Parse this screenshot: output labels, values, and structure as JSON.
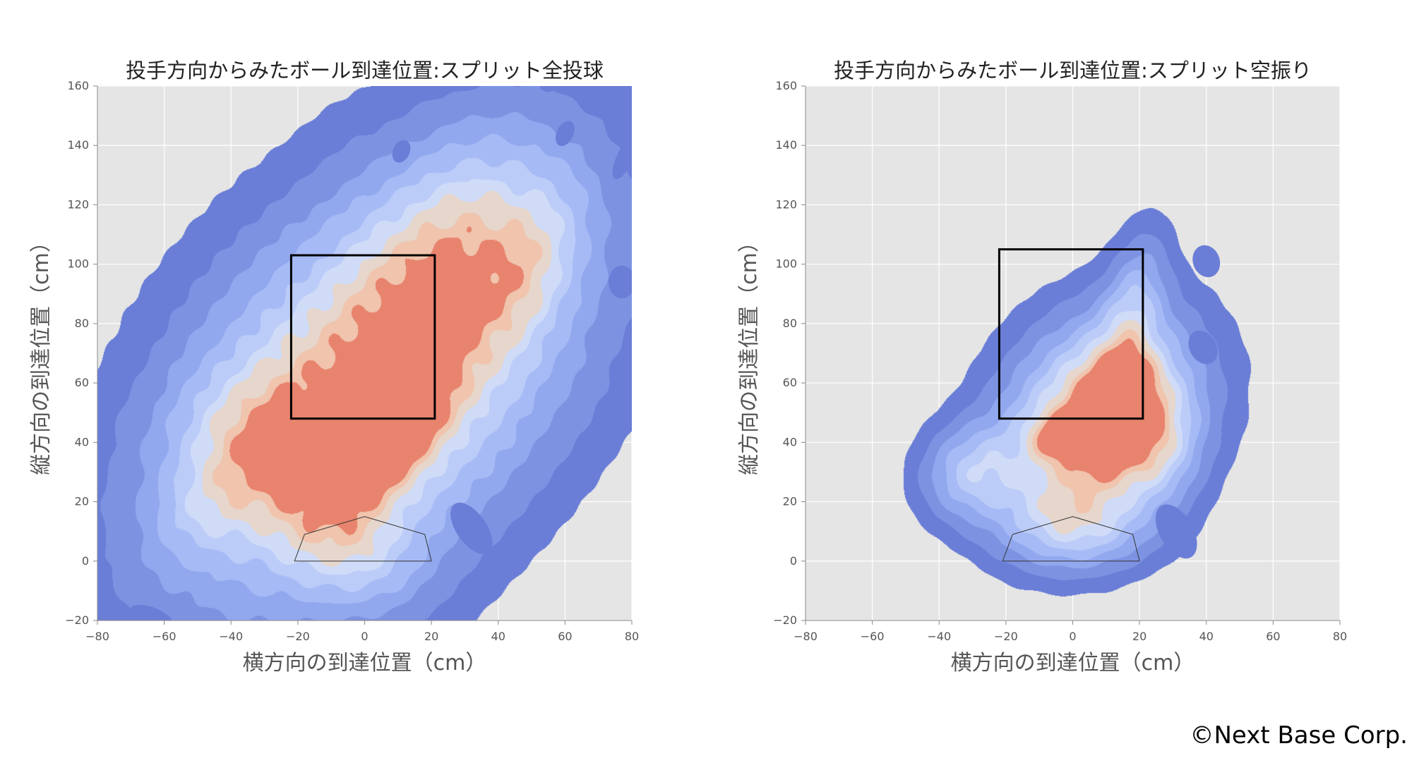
{
  "credit": "©Next Base Corp.",
  "colors": {
    "plot_bg": "#e5e5e5",
    "grid": "#ffffff",
    "tick_text": "#555555",
    "label_text": "#555555",
    "strike_zone": "#000000",
    "home_plate": "#333333",
    "kde_levels": [
      "#6a7ed7",
      "#7d93e2",
      "#92a8ee",
      "#a6bbf5",
      "#bcccf8",
      "#d0dcf7",
      "#e6d6cb",
      "#f0c4ad",
      "#e8836e"
    ]
  },
  "chart_data": [
    {
      "type": "heatmap",
      "title": "投手方向からみたボール到達位置:スプリット全投球",
      "xlabel": "横方向の到達位置（cm）",
      "ylabel": "縦方向の到達位置（cm）",
      "xlim": [
        -80,
        80
      ],
      "ylim": [
        -20,
        160
      ],
      "xticks": [
        -80,
        -60,
        -40,
        -20,
        0,
        20,
        40,
        60,
        80
      ],
      "yticks": [
        -20,
        0,
        20,
        40,
        60,
        80,
        100,
        120,
        140,
        160
      ],
      "xtick_labels": [
        "−80",
        "−60",
        "−40",
        "−20",
        "0",
        "20",
        "40",
        "60",
        "80"
      ],
      "ytick_labels": [
        "−20",
        "0",
        "20",
        "40",
        "60",
        "80",
        "100",
        "120",
        "140",
        "160"
      ],
      "grid": true,
      "strike_zone": {
        "x": [
          -22,
          21
        ],
        "y": [
          48,
          103
        ]
      },
      "home_plate": [
        [
          -21,
          0
        ],
        [
          -18,
          9
        ],
        [
          0,
          15
        ],
        [
          18,
          9
        ],
        [
          20,
          0
        ]
      ],
      "density_blobs": [
        {
          "cx": 2,
          "cy": 60,
          "sx": 32,
          "sy": 55,
          "rot": -35,
          "w": 1.0
        },
        {
          "cx": 5,
          "cy": 45,
          "sx": 9,
          "sy": 17,
          "rot": -30,
          "w": 0.85
        },
        {
          "cx": -30,
          "cy": 40,
          "sx": 16,
          "sy": 15,
          "rot": -40,
          "w": 0.35
        },
        {
          "cx": 28,
          "cy": 105,
          "sx": 16,
          "sy": 28,
          "rot": -25,
          "w": 0.35
        },
        {
          "cx": 50,
          "cy": 100,
          "sx": 9,
          "sy": 20,
          "rot": -20,
          "w": 0.25
        },
        {
          "cx": -5,
          "cy": 5,
          "sx": 16,
          "sy": 12,
          "rot": -40,
          "w": 0.3
        },
        {
          "cx": -48,
          "cy": 18,
          "sx": 9,
          "sy": 13,
          "rot": -35,
          "w": 0.18
        }
      ],
      "extra_islands": [
        {
          "cx": 11,
          "cy": 138,
          "rx": 2.5,
          "ry": 4,
          "rot": -25
        },
        {
          "cx": 60,
          "cy": 144,
          "rx": 2.5,
          "ry": 4.5,
          "rot": -25
        },
        {
          "cx": 78,
          "cy": 136,
          "rx": 2.5,
          "ry": 8,
          "rot": -25
        },
        {
          "cx": 77,
          "cy": 94,
          "rx": 4,
          "ry": 5.5,
          "rot": 0
        },
        {
          "cx": 32,
          "cy": 11,
          "rx": 4.5,
          "ry": 10,
          "rot": 35
        },
        {
          "cx": -64,
          "cy": -19,
          "rx": 7,
          "ry": 3.5,
          "rot": -20
        },
        {
          "cx": 55,
          "cy": 160,
          "rx": 2.5,
          "ry": 2,
          "rot": 0
        }
      ]
    },
    {
      "type": "heatmap",
      "title": "投手方向からみたボール到達位置:スプリット空振り",
      "xlabel": "横方向の到達位置（cm）",
      "ylabel": "縦方向の到達位置（cm）",
      "xlim": [
        -80,
        80
      ],
      "ylim": [
        -20,
        160
      ],
      "xticks": [
        -80,
        -60,
        -40,
        -20,
        0,
        20,
        40,
        60,
        80
      ],
      "yticks": [
        -20,
        0,
        20,
        40,
        60,
        80,
        100,
        120,
        140,
        160
      ],
      "xtick_labels": [
        "−80",
        "−60",
        "−40",
        "−20",
        "0",
        "20",
        "40",
        "60",
        "80"
      ],
      "ytick_labels": [
        "−20",
        "0",
        "20",
        "40",
        "60",
        "80",
        "100",
        "120",
        "140",
        "160"
      ],
      "grid": true,
      "strike_zone": {
        "x": [
          -22,
          21
        ],
        "y": [
          48,
          105
        ]
      },
      "home_plate": [
        [
          -21,
          0
        ],
        [
          -18,
          9
        ],
        [
          0,
          15
        ],
        [
          18,
          9
        ],
        [
          20,
          0
        ]
      ],
      "density_blobs": [
        {
          "cx": 8,
          "cy": 48,
          "sx": 18,
          "sy": 24,
          "rot": -25,
          "w": 1.0
        },
        {
          "cx": 12,
          "cy": 50,
          "sx": 7,
          "sy": 12,
          "rot": -15,
          "w": 0.9
        },
        {
          "cx": -5,
          "cy": 42,
          "sx": 5,
          "sy": 5,
          "rot": 0,
          "w": 0.45
        },
        {
          "cx": -30,
          "cy": 30,
          "sx": 10,
          "sy": 11,
          "rot": -30,
          "w": 0.45
        },
        {
          "cx": 18,
          "cy": 85,
          "sx": 6,
          "sy": 18,
          "rot": -10,
          "w": 0.35
        },
        {
          "cx": 0,
          "cy": 12,
          "sx": 15,
          "sy": 10,
          "rot": 0,
          "w": 0.45
        },
        {
          "cx": 25,
          "cy": 40,
          "sx": 8,
          "sy": 13,
          "rot": 0,
          "w": 0.35
        }
      ],
      "extra_islands": [
        {
          "cx": 40,
          "cy": 101,
          "rx": 4,
          "ry": 5.5,
          "rot": 20
        },
        {
          "cx": 39,
          "cy": 72,
          "rx": 4,
          "ry": 6,
          "rot": 30
        },
        {
          "cx": 31,
          "cy": 10,
          "rx": 5,
          "ry": 10,
          "rot": 30
        }
      ]
    }
  ]
}
